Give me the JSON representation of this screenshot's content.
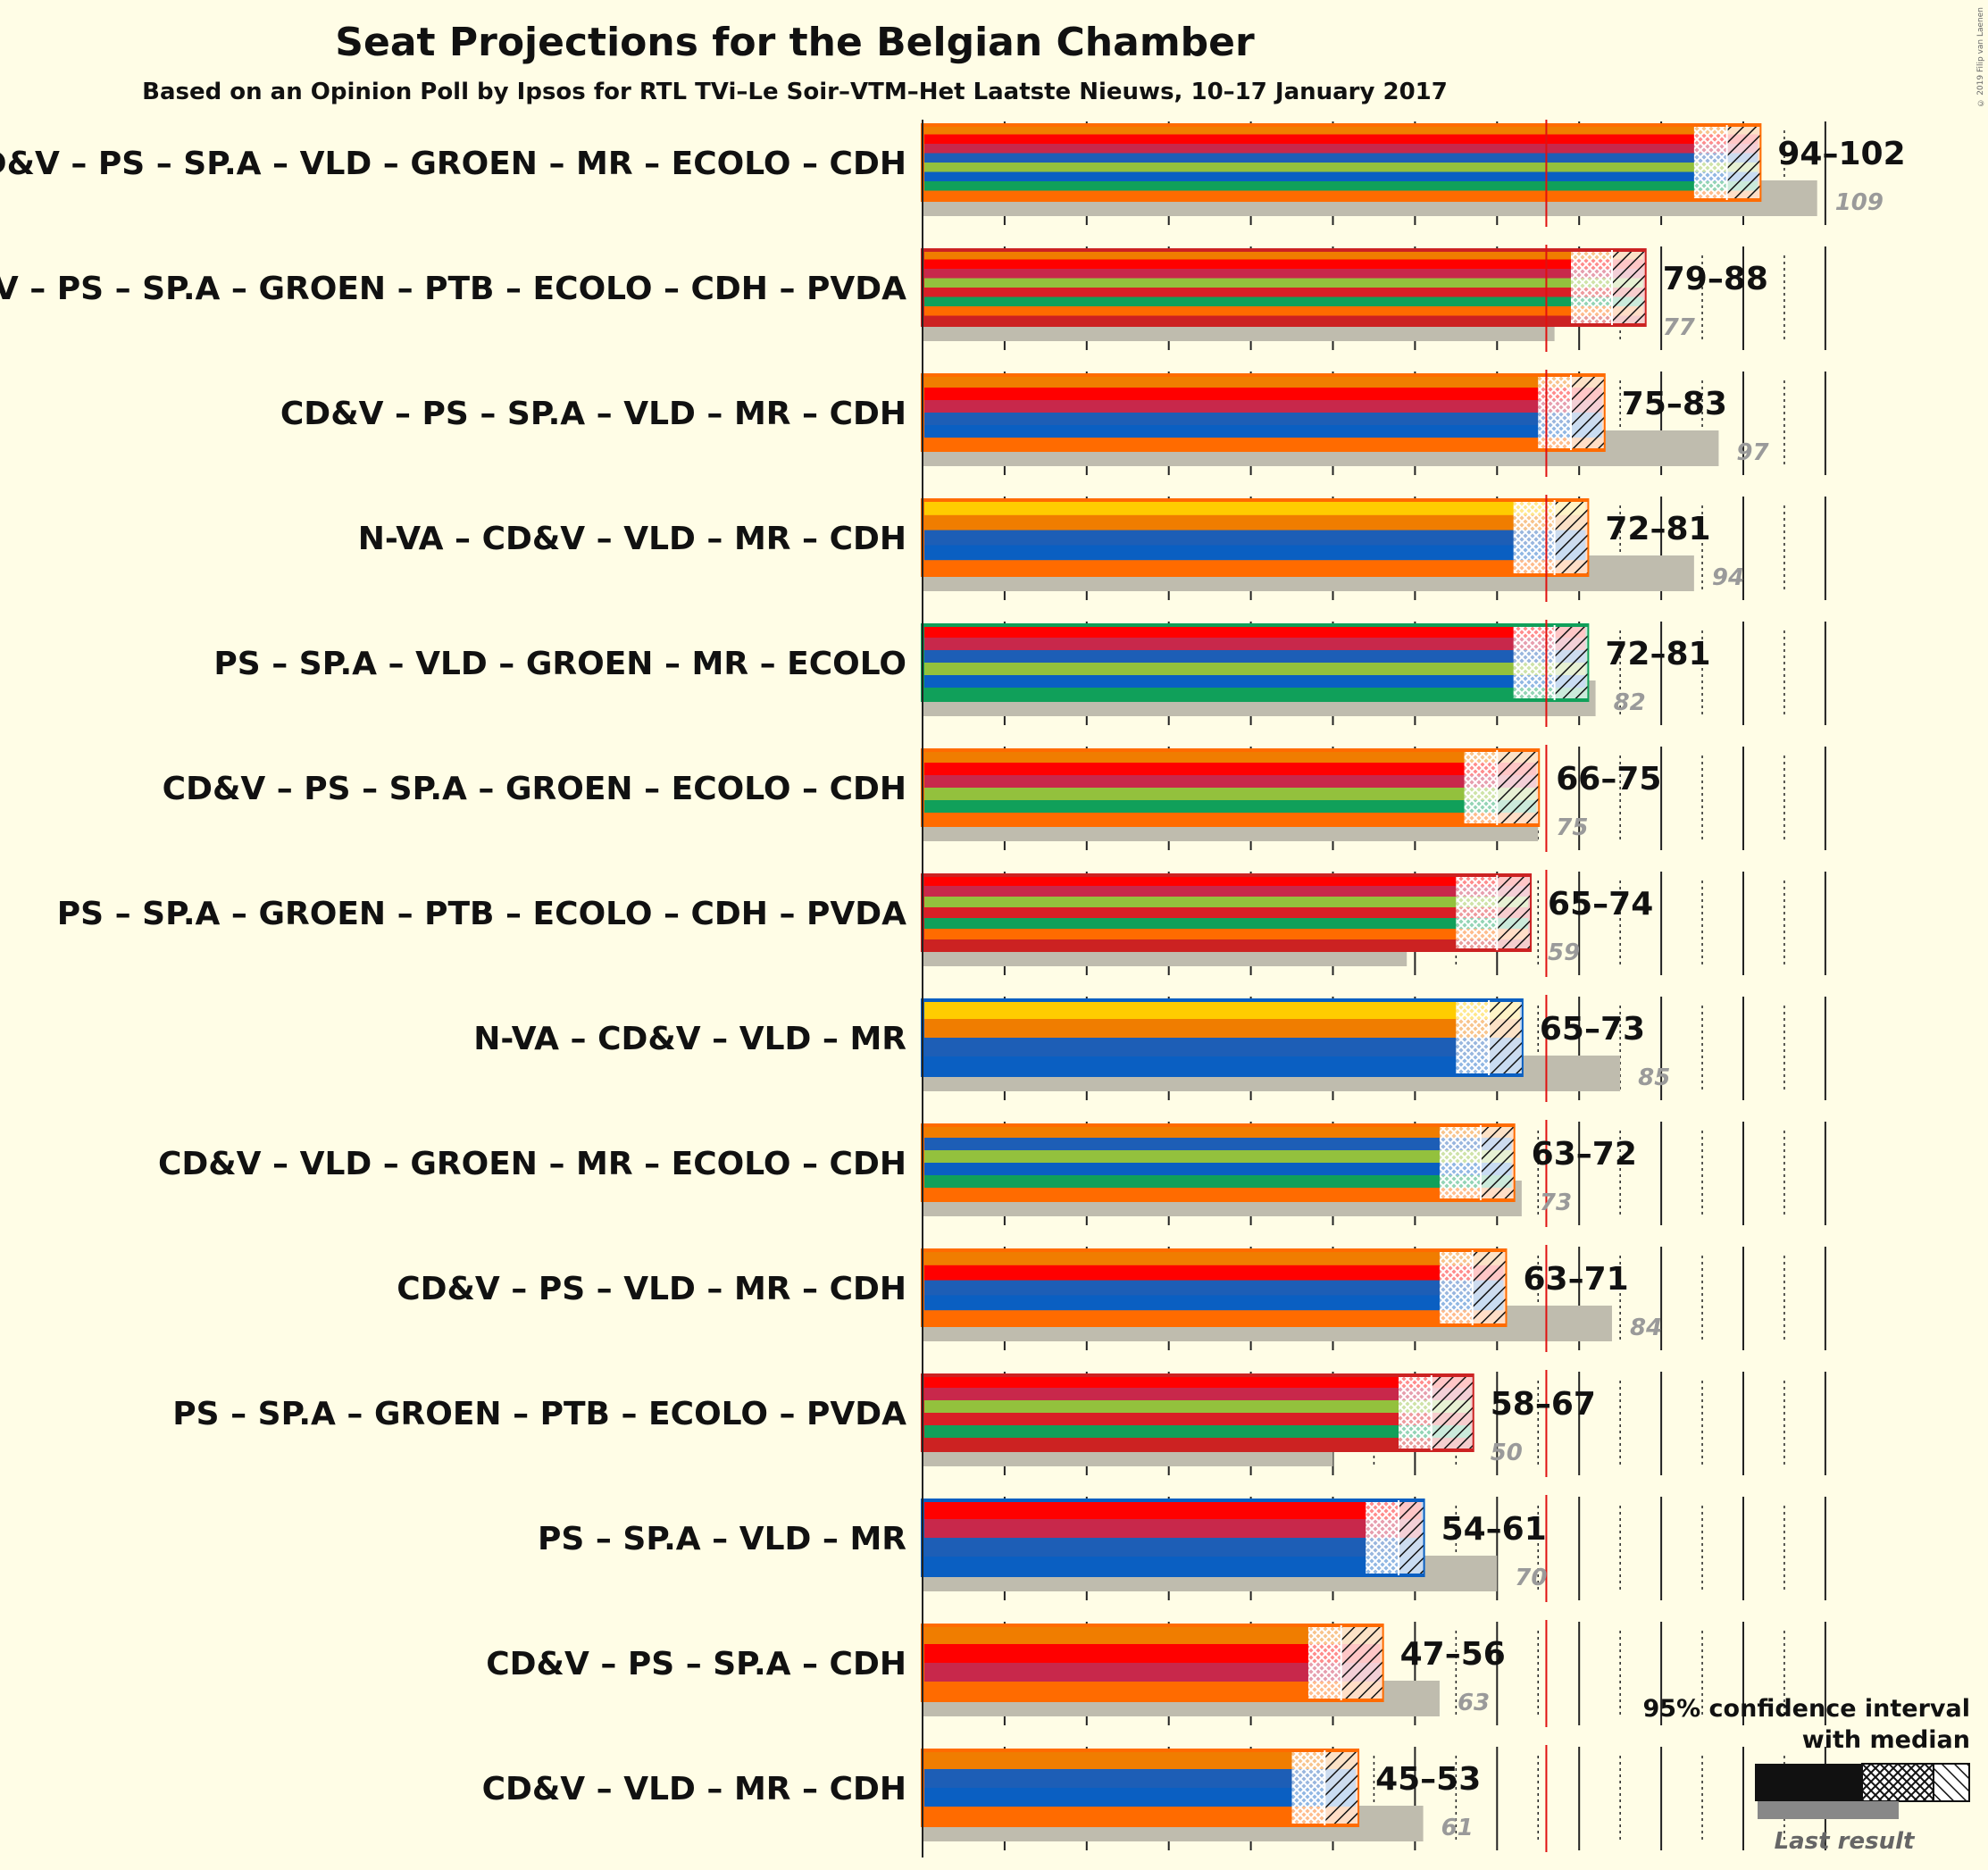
{
  "title": "Seat Projections for the Belgian Chamber",
  "subtitle": "Based on an Opinion Poll by Ipsos for RTL TVi–Le Soir–VTM–Het Laatste Nieuws, 10–17 January 2017",
  "credit": "© 2019 Filip van Laenen",
  "majority": 76,
  "party_colors": {
    "CD&V": "#f07d00",
    "PS": "#ff0000",
    "SP.A": "#c8284b",
    "VLD": "#1d5eb6",
    "GROEN": "#93c13d",
    "MR": "#0a5fc2",
    "ECOLO": "#10a05a",
    "CDH": "#ff6b00",
    "PTB": "#d91f26",
    "PVDA": "#cc2222",
    "N-VA": "#ffcc00"
  },
  "chart_data": {
    "type": "bar",
    "orientation": "horizontal",
    "xlim": [
      0,
      110
    ],
    "categories": [
      "CD&V – PS – SP.A – VLD – GROEN – MR – ECOLO – CDH",
      "CD&V – PS – SP.A – GROEN – PTB – ECOLO – CDH – PVDA",
      "CD&V – PS – SP.A – VLD – MR – CDH",
      "N-VA – CD&V – VLD – MR – CDH",
      "PS – SP.A – VLD – GROEN – MR – ECOLO",
      "CD&V – PS – SP.A – GROEN – ECOLO – CDH",
      "PS – SP.A – GROEN – PTB – ECOLO – CDH – PVDA",
      "N-VA – CD&V – VLD – MR",
      "CD&V – VLD – GROEN – MR – ECOLO – CDH",
      "CD&V – PS – VLD – MR – CDH",
      "PS – SP.A – GROEN – PTB – ECOLO – PVDA",
      "PS – SP.A – VLD – MR",
      "CD&V – PS – SP.A – CDH",
      "CD&V – VLD – MR – CDH"
    ],
    "coalitions": [
      {
        "parties": [
          "CD&V",
          "PS",
          "SP.A",
          "VLD",
          "GROEN",
          "MR",
          "ECOLO",
          "CDH"
        ],
        "low": 94,
        "median": 98,
        "high": 102,
        "range_label": "94–102",
        "last": 109,
        "last_label": "109"
      },
      {
        "parties": [
          "CD&V",
          "PS",
          "SP.A",
          "GROEN",
          "PTB",
          "ECOLO",
          "CDH",
          "PVDA"
        ],
        "low": 79,
        "median": 84,
        "high": 88,
        "range_label": "79–88",
        "last": 77,
        "last_label": "77"
      },
      {
        "parties": [
          "CD&V",
          "PS",
          "SP.A",
          "VLD",
          "MR",
          "CDH"
        ],
        "low": 75,
        "median": 79,
        "high": 83,
        "range_label": "75–83",
        "last": 97,
        "last_label": "97"
      },
      {
        "parties": [
          "N-VA",
          "CD&V",
          "VLD",
          "MR",
          "CDH"
        ],
        "low": 72,
        "median": 77,
        "high": 81,
        "range_label": "72–81",
        "last": 94,
        "last_label": "94"
      },
      {
        "parties": [
          "PS",
          "SP.A",
          "VLD",
          "GROEN",
          "MR",
          "ECOLO"
        ],
        "low": 72,
        "median": 77,
        "high": 81,
        "range_label": "72–81",
        "last": 82,
        "last_label": "82"
      },
      {
        "parties": [
          "CD&V",
          "PS",
          "SP.A",
          "GROEN",
          "ECOLO",
          "CDH"
        ],
        "low": 66,
        "median": 70,
        "high": 75,
        "range_label": "66–75",
        "last": 75,
        "last_label": "75"
      },
      {
        "parties": [
          "PS",
          "SP.A",
          "GROEN",
          "PTB",
          "ECOLO",
          "CDH",
          "PVDA"
        ],
        "low": 65,
        "median": 70,
        "high": 74,
        "range_label": "65–74",
        "last": 59,
        "last_label": "59"
      },
      {
        "parties": [
          "N-VA",
          "CD&V",
          "VLD",
          "MR"
        ],
        "low": 65,
        "median": 69,
        "high": 73,
        "range_label": "65–73",
        "last": 85,
        "last_label": "85"
      },
      {
        "parties": [
          "CD&V",
          "VLD",
          "GROEN",
          "MR",
          "ECOLO",
          "CDH"
        ],
        "low": 63,
        "median": 68,
        "high": 72,
        "range_label": "63–72",
        "last": 73,
        "last_label": "73"
      },
      {
        "parties": [
          "CD&V",
          "PS",
          "VLD",
          "MR",
          "CDH"
        ],
        "low": 63,
        "median": 67,
        "high": 71,
        "range_label": "63–71",
        "last": 84,
        "last_label": "84"
      },
      {
        "parties": [
          "PS",
          "SP.A",
          "GROEN",
          "PTB",
          "ECOLO",
          "PVDA"
        ],
        "low": 58,
        "median": 62,
        "high": 67,
        "range_label": "58–67",
        "last": 50,
        "last_label": "50"
      },
      {
        "parties": [
          "PS",
          "SP.A",
          "VLD",
          "MR"
        ],
        "low": 54,
        "median": 58,
        "high": 61,
        "range_label": "54–61",
        "last": 70,
        "last_label": "70"
      },
      {
        "parties": [
          "CD&V",
          "PS",
          "SP.A",
          "CDH"
        ],
        "low": 47,
        "median": 51,
        "high": 56,
        "range_label": "47–56",
        "last": 63,
        "last_label": "63"
      },
      {
        "parties": [
          "CD&V",
          "VLD",
          "MR",
          "CDH"
        ],
        "low": 45,
        "median": 49,
        "high": 53,
        "range_label": "45–53",
        "last": 61,
        "last_label": "61"
      }
    ]
  },
  "legend": {
    "line1": "95% confidence interval",
    "line2": "with median",
    "last_result": "Last result"
  }
}
